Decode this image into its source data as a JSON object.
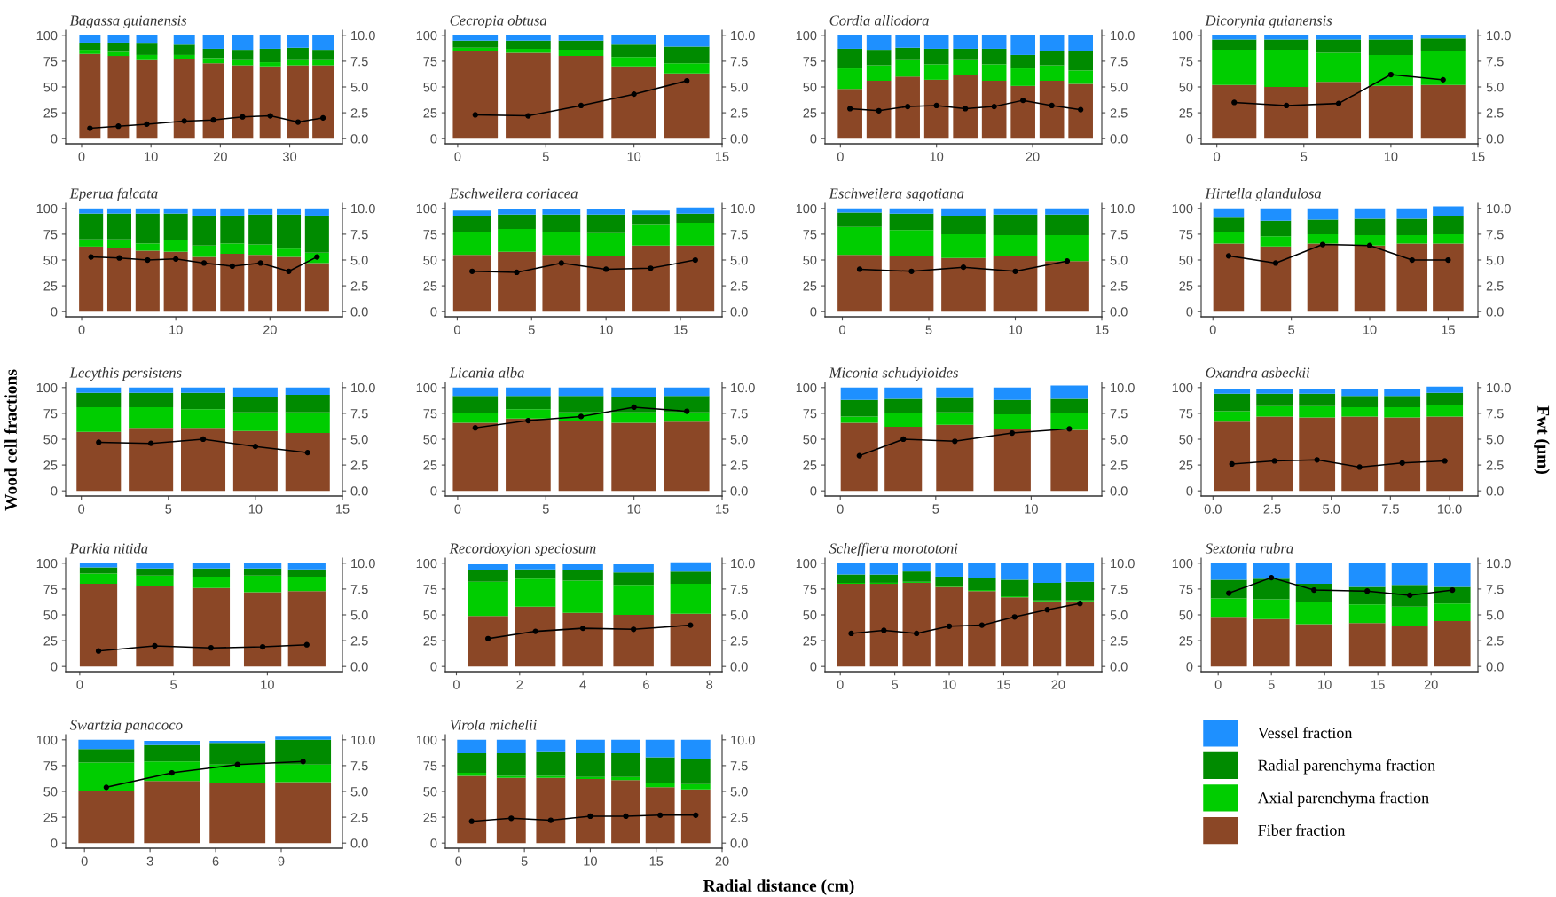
{
  "chart_data": [
    {
      "type": "bar",
      "stacked": true,
      "title": "Bagassa guianensis",
      "legend": "right",
      "x": [
        1.2,
        5.3,
        9.4,
        14.8,
        19,
        23.2,
        27.2,
        31.2,
        34.8
      ],
      "xlim": [
        -2.3,
        37.6
      ],
      "xticks": [
        0,
        10,
        20,
        30
      ],
      "ylim": [
        -5,
        105
      ],
      "yticks": [
        0,
        25,
        50,
        75,
        100
      ],
      "y2lim": [
        -0.5,
        10.5
      ],
      "y2ticks": [
        {
          "value": 0,
          "label": "0.0"
        },
        {
          "value": 2.5,
          "label": "2.5"
        },
        {
          "value": 5,
          "label": "5.0"
        },
        {
          "value": 7.5,
          "label": "7.5"
        },
        {
          "value": 10,
          "label": "10.0"
        }
      ],
      "marker": "circle",
      "line_style": "solid",
      "series": [
        {
          "name": "Fiber fraction",
          "color": "#8b4726",
          "values": [
            82,
            80,
            76,
            77,
            73,
            71,
            70,
            71,
            71
          ]
        },
        {
          "name": "Axial parenchyma fraction",
          "color": "#00cd00",
          "values": [
            4,
            4,
            5,
            4,
            5,
            5,
            4,
            5,
            5
          ]
        },
        {
          "name": "Radial parenchyma fraction",
          "color": "#008b00",
          "values": [
            7,
            9,
            11,
            10,
            9,
            10,
            13,
            12,
            10
          ]
        },
        {
          "name": "Vessel fraction",
          "color": "#1e90ff",
          "values": [
            7,
            7,
            8,
            9,
            13,
            14,
            13,
            12,
            14
          ]
        },
        {
          "type": "line",
          "axis": "y2",
          "color": "#000000",
          "values": [
            1.0,
            1.2,
            1.4,
            1.7,
            1.8,
            2.1,
            2.2,
            1.6,
            2.0
          ]
        }
      ]
    },
    {
      "type": "bar",
      "stacked": true,
      "title": "Cecropia obtusa",
      "x": [
        1,
        4,
        7,
        10,
        13
      ],
      "xlim": [
        -0.7,
        15
      ],
      "xticks": [
        0,
        5,
        10,
        15
      ],
      "ylim": [
        -5,
        105
      ],
      "yticks": [
        0,
        25,
        50,
        75,
        100
      ],
      "y2lim": [
        -0.5,
        10.5
      ],
      "y2ticks": [
        {
          "value": 0,
          "label": "0.0"
        },
        {
          "value": 2.5,
          "label": "2.5"
        },
        {
          "value": 5,
          "label": "5.0"
        },
        {
          "value": 7.5,
          "label": "7.5"
        },
        {
          "value": 10,
          "label": "10.0"
        }
      ],
      "marker": "circle",
      "line_style": "solid",
      "series": [
        {
          "color": "#8b4726",
          "values": [
            85,
            83,
            80,
            70,
            63
          ]
        },
        {
          "color": "#00cd00",
          "values": [
            3,
            4,
            6,
            9,
            10
          ]
        },
        {
          "color": "#008b00",
          "values": [
            7,
            8,
            9,
            12,
            16
          ]
        },
        {
          "color": "#1e90ff",
          "values": [
            5,
            5,
            5,
            9,
            11
          ]
        },
        {
          "type": "line",
          "axis": "y2",
          "color": "#000000",
          "values": [
            2.3,
            2.2,
            3.2,
            4.3,
            5.6
          ]
        }
      ]
    },
    {
      "type": "bar",
      "stacked": true,
      "title": "Cordia alliodora",
      "x": [
        1,
        4,
        7,
        10,
        13,
        16,
        19,
        22,
        25
      ],
      "xlim": [
        -1.6,
        27.2
      ],
      "xticks": [
        0,
        10,
        20
      ],
      "ylim": [
        -5,
        105
      ],
      "yticks": [
        0,
        25,
        50,
        75,
        100
      ],
      "y2lim": [
        -0.5,
        10.5
      ],
      "y2ticks": [
        {
          "value": 0,
          "label": "0.0"
        },
        {
          "value": 2.5,
          "label": "2.5"
        },
        {
          "value": 5,
          "label": "5.0"
        },
        {
          "value": 7.5,
          "label": "7.5"
        },
        {
          "value": 10,
          "label": "10.0"
        }
      ],
      "marker": "circle",
      "line_style": "solid",
      "series": [
        {
          "color": "#8b4726",
          "values": [
            48,
            56,
            60,
            57,
            62,
            56,
            51,
            56,
            53
          ]
        },
        {
          "color": "#00cd00",
          "values": [
            20,
            15,
            16,
            15,
            14,
            16,
            17,
            15,
            13
          ]
        },
        {
          "color": "#008b00",
          "values": [
            19,
            15,
            12,
            15,
            11,
            15,
            13,
            14,
            19
          ]
        },
        {
          "color": "#1e90ff",
          "values": [
            13,
            14,
            12,
            13,
            13,
            13,
            19,
            15,
            15
          ]
        },
        {
          "type": "line",
          "axis": "y2",
          "color": "#000000",
          "values": [
            2.9,
            2.7,
            3.1,
            3.2,
            2.9,
            3.1,
            3.7,
            3.2,
            2.8
          ]
        }
      ]
    },
    {
      "type": "bar",
      "stacked": true,
      "title": "Dicorynia guianensis",
      "x": [
        1,
        4,
        7,
        10,
        13
      ],
      "xlim": [
        -0.9,
        15
      ],
      "xticks": [
        0,
        5,
        10,
        15
      ],
      "ylim": [
        -5,
        105
      ],
      "yticks": [
        0,
        25,
        50,
        75,
        100
      ],
      "y2lim": [
        -0.5,
        10.5
      ],
      "y2ticks": [
        {
          "value": 0,
          "label": "0.0"
        },
        {
          "value": 2.5,
          "label": "2.5"
        },
        {
          "value": 5,
          "label": "5.0"
        },
        {
          "value": 7.5,
          "label": "7.5"
        },
        {
          "value": 10,
          "label": "10.0"
        }
      ],
      "marker": "circle",
      "line_style": "solid",
      "series": [
        {
          "color": "#8b4726",
          "values": [
            52,
            50,
            55,
            51,
            52
          ]
        },
        {
          "color": "#00cd00",
          "values": [
            34,
            36,
            28,
            30,
            33
          ]
        },
        {
          "color": "#008b00",
          "values": [
            10,
            10,
            13,
            15,
            12
          ]
        },
        {
          "color": "#1e90ff",
          "values": [
            4,
            4,
            4,
            4,
            3
          ]
        },
        {
          "type": "line",
          "axis": "y2",
          "color": "#000000",
          "values": [
            3.5,
            3.2,
            3.4,
            6.2,
            5.7
          ]
        }
      ]
    },
    {
      "type": "bar",
      "stacked": true,
      "title": "Eperua falcata",
      "x": [
        1,
        4,
        7,
        10,
        13,
        16,
        19,
        22,
        25
      ],
      "xlim": [
        -1.7,
        27.7
      ],
      "xticks": [
        0,
        10,
        20
      ],
      "ylim": [
        -5,
        105
      ],
      "yticks": [
        0,
        25,
        50,
        75,
        100
      ],
      "y2lim": [
        -0.5,
        10.5
      ],
      "y2ticks": [
        {
          "value": 0,
          "label": "0.0"
        },
        {
          "value": 2.5,
          "label": "2.5"
        },
        {
          "value": 5,
          "label": "5.0"
        },
        {
          "value": 7.5,
          "label": "7.5"
        },
        {
          "value": 10,
          "label": "10.0"
        }
      ],
      "marker": "circle",
      "line_style": "solid",
      "series": [
        {
          "color": "#8b4726",
          "values": [
            63,
            62,
            59,
            58,
            53,
            56,
            55,
            53,
            47
          ]
        },
        {
          "color": "#00cd00",
          "values": [
            7,
            8,
            7,
            11,
            11,
            10,
            10,
            8,
            10
          ]
        },
        {
          "color": "#008b00",
          "values": [
            25,
            25,
            29,
            26,
            29,
            27,
            29,
            33,
            36
          ]
        },
        {
          "color": "#1e90ff",
          "values": [
            5,
            5,
            5,
            5,
            7,
            7,
            6,
            6,
            7
          ]
        },
        {
          "type": "line",
          "axis": "y2",
          "color": "#000000",
          "values": [
            5.3,
            5.2,
            5.0,
            5.1,
            4.7,
            4.4,
            4.7,
            3.9,
            5.3
          ]
        }
      ]
    },
    {
      "type": "bar",
      "stacked": true,
      "title": "Eschweilera coriacea",
      "x": [
        1,
        4,
        7,
        10,
        13,
        16
      ],
      "xlim": [
        -0.8,
        17.8
      ],
      "xticks": [
        0,
        5,
        10,
        15
      ],
      "ylim": [
        -5,
        105
      ],
      "yticks": [
        0,
        25,
        50,
        75,
        100
      ],
      "y2lim": [
        -0.5,
        10.5
      ],
      "y2ticks": [
        {
          "value": 0,
          "label": "0.0"
        },
        {
          "value": 2.5,
          "label": "2.5"
        },
        {
          "value": 5,
          "label": "5.0"
        },
        {
          "value": 7.5,
          "label": "7.5"
        },
        {
          "value": 10,
          "label": "10.0"
        }
      ],
      "marker": "circle",
      "line_style": "solid",
      "series": [
        {
          "color": "#8b4726",
          "values": [
            55,
            58,
            55,
            54,
            64,
            64
          ]
        },
        {
          "color": "#00cd00",
          "values": [
            22,
            22,
            22,
            22,
            20,
            22
          ]
        },
        {
          "color": "#008b00",
          "values": [
            16,
            14,
            17,
            18,
            10,
            9
          ]
        },
        {
          "color": "#1e90ff",
          "values": [
            5,
            5,
            5,
            5,
            4,
            6
          ]
        },
        {
          "type": "line",
          "axis": "y2",
          "color": "#000000",
          "values": [
            3.9,
            3.8,
            4.7,
            4.1,
            4.2,
            5.0
          ]
        }
      ]
    },
    {
      "type": "bar",
      "stacked": true,
      "title": "Eschweilera sagotiana",
      "x": [
        1,
        4,
        7,
        10,
        13
      ],
      "xlim": [
        -1,
        15
      ],
      "xticks": [
        0,
        5,
        10,
        15
      ],
      "ylim": [
        -5,
        105
      ],
      "yticks": [
        0,
        25,
        50,
        75,
        100
      ],
      "y2lim": [
        -0.5,
        10.5
      ],
      "y2ticks": [
        {
          "value": 0,
          "label": "0.0"
        },
        {
          "value": 2.5,
          "label": "2.5"
        },
        {
          "value": 5,
          "label": "5.0"
        },
        {
          "value": 7.5,
          "label": "7.5"
        },
        {
          "value": 10,
          "label": "10.0"
        }
      ],
      "marker": "circle",
      "line_style": "solid",
      "series": [
        {
          "color": "#8b4726",
          "values": [
            55,
            54,
            52,
            54,
            49
          ]
        },
        {
          "color": "#00cd00",
          "values": [
            27,
            25,
            23,
            20,
            25
          ]
        },
        {
          "color": "#008b00",
          "values": [
            14,
            16,
            18,
            20,
            20
          ]
        },
        {
          "color": "#1e90ff",
          "values": [
            4,
            5,
            7,
            6,
            6
          ]
        },
        {
          "type": "line",
          "axis": "y2",
          "color": "#000000",
          "values": [
            4.1,
            3.9,
            4.3,
            3.9,
            4.9
          ]
        }
      ]
    },
    {
      "type": "bar",
      "stacked": true,
      "title": "Hirtella glandulosa",
      "x": [
        1,
        4,
        7,
        10,
        12.7,
        15
      ],
      "xlim": [
        -0.75,
        16.9
      ],
      "xticks": [
        0,
        5,
        10,
        15
      ],
      "ylim": [
        -5,
        105
      ],
      "yticks": [
        0,
        25,
        50,
        75,
        100
      ],
      "y2lim": [
        -0.5,
        10.5
      ],
      "y2ticks": [
        {
          "value": 0,
          "label": "0.0"
        },
        {
          "value": 2.5,
          "label": "2.5"
        },
        {
          "value": 5,
          "label": "5.0"
        },
        {
          "value": 7.5,
          "label": "7.5"
        },
        {
          "value": 10,
          "label": "10.0"
        }
      ],
      "marker": "circle",
      "line_style": "solid",
      "series": [
        {
          "color": "#8b4726",
          "values": [
            66,
            63,
            66,
            64,
            66,
            66
          ]
        },
        {
          "color": "#00cd00",
          "values": [
            11,
            10,
            9,
            10,
            8,
            9
          ]
        },
        {
          "color": "#008b00",
          "values": [
            14,
            15,
            14,
            16,
            16,
            18
          ]
        },
        {
          "color": "#1e90ff",
          "values": [
            9,
            12,
            11,
            10,
            10,
            9
          ]
        },
        {
          "type": "line",
          "axis": "y2",
          "color": "#000000",
          "values": [
            5.4,
            4.7,
            6.5,
            6.4,
            5.0,
            5.0
          ]
        }
      ]
    },
    {
      "type": "bar",
      "stacked": true,
      "title": "Lecythis persistens",
      "ylabel": "Wood cell fractions",
      "x": [
        1,
        4,
        7,
        10,
        13
      ],
      "xlim": [
        -0.9,
        15
      ],
      "xticks": [
        0,
        5,
        10,
        15
      ],
      "ylim": [
        -5,
        105
      ],
      "yticks": [
        0,
        25,
        50,
        75,
        100
      ],
      "y2lim": [
        -0.5,
        10.5
      ],
      "y2ticks": [
        {
          "value": 0,
          "label": "0.0"
        },
        {
          "value": 2.5,
          "label": "2.5"
        },
        {
          "value": 5,
          "label": "5.0"
        },
        {
          "value": 7.5,
          "label": "7.5"
        },
        {
          "value": 10,
          "label": "10.0"
        }
      ],
      "marker": "circle",
      "line_style": "solid",
      "series": [
        {
          "color": "#8b4726",
          "values": [
            57,
            61,
            61,
            58,
            56
          ]
        },
        {
          "color": "#00cd00",
          "values": [
            24,
            20,
            18,
            18,
            20
          ]
        },
        {
          "color": "#008b00",
          "values": [
            14,
            14,
            16,
            15,
            17
          ]
        },
        {
          "color": "#1e90ff",
          "values": [
            5,
            5,
            5,
            9,
            7
          ]
        },
        {
          "type": "line",
          "axis": "y2",
          "color": "#000000",
          "values": [
            4.7,
            4.6,
            5.0,
            4.3,
            3.7
          ]
        }
      ]
    },
    {
      "type": "bar",
      "stacked": true,
      "title": "Licania alba",
      "x": [
        1,
        4,
        7,
        10,
        13
      ],
      "xlim": [
        -0.7,
        15
      ],
      "xticks": [
        0,
        5,
        10,
        15
      ],
      "ylim": [
        -5,
        105
      ],
      "yticks": [
        0,
        25,
        50,
        75,
        100
      ],
      "y2lim": [
        -0.5,
        10.5
      ],
      "y2ticks": [
        {
          "value": 0,
          "label": "0.0"
        },
        {
          "value": 2.5,
          "label": "2.5"
        },
        {
          "value": 5,
          "label": "5.0"
        },
        {
          "value": 7.5,
          "label": "7.5"
        },
        {
          "value": 10,
          "label": "10.0"
        }
      ],
      "marker": "circle",
      "line_style": "solid",
      "series": [
        {
          "color": "#8b4726",
          "values": [
            66,
            70,
            68,
            66,
            67
          ]
        },
        {
          "color": "#00cd00",
          "values": [
            9,
            9,
            8,
            10,
            9
          ]
        },
        {
          "color": "#008b00",
          "values": [
            17,
            13,
            16,
            15,
            16
          ]
        },
        {
          "color": "#1e90ff",
          "values": [
            8,
            8,
            8,
            9,
            8
          ]
        },
        {
          "type": "line",
          "axis": "y2",
          "color": "#000000",
          "values": [
            6.1,
            6.8,
            7.2,
            8.1,
            7.7
          ]
        }
      ]
    },
    {
      "type": "bar",
      "stacked": true,
      "title": "Miconia schudyioides",
      "x": [
        1,
        3.3,
        6,
        9,
        12
      ],
      "xlim": [
        -0.8,
        13.7
      ],
      "xticks": [
        0,
        5,
        10
      ],
      "ylim": [
        -5,
        105
      ],
      "yticks": [
        0,
        25,
        50,
        75,
        100
      ],
      "y2lim": [
        -0.5,
        10.5
      ],
      "y2ticks": [
        {
          "value": 0,
          "label": "0.0"
        },
        {
          "value": 2.5,
          "label": "2.5"
        },
        {
          "value": 5,
          "label": "5.0"
        },
        {
          "value": 7.5,
          "label": "7.5"
        },
        {
          "value": 10,
          "label": "10.0"
        }
      ],
      "marker": "circle",
      "line_style": "solid",
      "series": [
        {
          "color": "#8b4726",
          "values": [
            66,
            62,
            64,
            60,
            59
          ]
        },
        {
          "color": "#00cd00",
          "values": [
            6,
            13,
            12,
            14,
            16
          ]
        },
        {
          "color": "#008b00",
          "values": [
            16,
            14,
            14,
            14,
            14
          ]
        },
        {
          "color": "#1e90ff",
          "values": [
            12,
            11,
            10,
            12,
            13
          ]
        },
        {
          "type": "line",
          "axis": "y2",
          "color": "#000000",
          "values": [
            3.4,
            5.0,
            4.8,
            5.6,
            6.0
          ]
        }
      ]
    },
    {
      "type": "bar",
      "stacked": true,
      "title": "Oxandra asbeckii",
      "y2label": "Fwt (µm)",
      "x": [
        0.8,
        2.6,
        4.4,
        6.2,
        8.0,
        9.8
      ],
      "xlim": [
        -0.5,
        11.2
      ],
      "xticks": [
        {
          "value": 0,
          "label": "0.0"
        },
        {
          "value": 2.5,
          "label": "2.5"
        },
        {
          "value": 5,
          "label": "5.0"
        },
        {
          "value": 7.5,
          "label": "7.5"
        },
        {
          "value": 10,
          "label": "10.0"
        }
      ],
      "ylim": [
        -5,
        105
      ],
      "yticks": [
        0,
        25,
        50,
        75,
        100
      ],
      "y2lim": [
        -0.5,
        10.5
      ],
      "y2ticks": [
        {
          "value": 0,
          "label": "0.0"
        },
        {
          "value": 2.5,
          "label": "2.5"
        },
        {
          "value": 5,
          "label": "5.0"
        },
        {
          "value": 7.5,
          "label": "7.5"
        },
        {
          "value": 10,
          "label": "10.0"
        }
      ],
      "marker": "circle",
      "line_style": "solid",
      "series": [
        {
          "color": "#8b4726",
          "values": [
            67,
            72,
            71,
            72,
            71,
            72
          ]
        },
        {
          "color": "#00cd00",
          "values": [
            10,
            10,
            11,
            9,
            10,
            11
          ]
        },
        {
          "color": "#008b00",
          "values": [
            17,
            12,
            12,
            11,
            11,
            12
          ]
        },
        {
          "color": "#1e90ff",
          "values": [
            5,
            5,
            5,
            7,
            7,
            6
          ]
        },
        {
          "type": "line",
          "axis": "y2",
          "color": "#000000",
          "values": [
            2.6,
            2.9,
            3.0,
            2.3,
            2.7,
            2.9
          ]
        }
      ]
    },
    {
      "type": "bar",
      "stacked": true,
      "title": "Parkia nitida",
      "x": [
        1,
        4,
        7,
        9.75,
        12.1
      ],
      "xlim": [
        -0.75,
        14
      ],
      "xticks": [
        0,
        5,
        10
      ],
      "ylim": [
        -5,
        105
      ],
      "yticks": [
        0,
        25,
        50,
        75,
        100
      ],
      "y2lim": [
        -0.5,
        10.5
      ],
      "y2ticks": [
        {
          "value": 0,
          "label": "0.0"
        },
        {
          "value": 2.5,
          "label": "2.5"
        },
        {
          "value": 5,
          "label": "5.0"
        },
        {
          "value": 7.5,
          "label": "7.5"
        },
        {
          "value": 10,
          "label": "10.0"
        }
      ],
      "marker": "circle",
      "line_style": "solid",
      "series": [
        {
          "color": "#8b4726",
          "values": [
            80,
            78,
            76,
            72,
            73
          ]
        },
        {
          "color": "#00cd00",
          "values": [
            10,
            10,
            11,
            16,
            14
          ]
        },
        {
          "color": "#008b00",
          "values": [
            6,
            7,
            8,
            7,
            7
          ]
        },
        {
          "color": "#1e90ff",
          "values": [
            4,
            5,
            5,
            5,
            6
          ]
        },
        {
          "type": "line",
          "axis": "y2",
          "color": "#000000",
          "values": [
            1.5,
            2.0,
            1.8,
            1.9,
            2.1
          ]
        }
      ]
    },
    {
      "type": "bar",
      "stacked": true,
      "title": "Recordoxylon speciosum",
      "x": [
        1,
        2.5,
        4,
        5.6,
        7.4
      ],
      "xlim": [
        -0.35,
        8.4
      ],
      "xticks": [
        0,
        2,
        4,
        6,
        8
      ],
      "ylim": [
        -5,
        105
      ],
      "yticks": [
        0,
        25,
        50,
        75,
        100
      ],
      "y2lim": [
        -0.5,
        10.5
      ],
      "y2ticks": [
        {
          "value": 0,
          "label": "0.0"
        },
        {
          "value": 2.5,
          "label": "2.5"
        },
        {
          "value": 5,
          "label": "5.0"
        },
        {
          "value": 7.5,
          "label": "7.5"
        },
        {
          "value": 10,
          "label": "10.0"
        }
      ],
      "marker": "circle",
      "line_style": "solid",
      "series": [
        {
          "color": "#8b4726",
          "values": [
            49,
            58,
            52,
            50,
            51
          ]
        },
        {
          "color": "#00cd00",
          "values": [
            33,
            27,
            31,
            29,
            29
          ]
        },
        {
          "color": "#008b00",
          "values": [
            11,
            9,
            10,
            12,
            12
          ]
        },
        {
          "color": "#1e90ff",
          "values": [
            6,
            5,
            6,
            8,
            9
          ]
        },
        {
          "type": "line",
          "axis": "y2",
          "color": "#000000",
          "values": [
            2.7,
            3.4,
            3.7,
            3.6,
            4.0
          ]
        }
      ]
    },
    {
      "type": "bar",
      "stacked": true,
      "title": "Schefflera morototoni",
      "x": [
        1,
        4,
        7,
        10,
        13,
        16,
        19,
        22
      ],
      "xlim": [
        -1.4,
        24
      ],
      "xticks": [
        0,
        5,
        10,
        15,
        20
      ],
      "ylim": [
        -5,
        105
      ],
      "yticks": [
        0,
        25,
        50,
        75,
        100
      ],
      "y2lim": [
        -0.5,
        10.5
      ],
      "y2ticks": [
        {
          "value": 0,
          "label": "0.0"
        },
        {
          "value": 2.5,
          "label": "2.5"
        },
        {
          "value": 5,
          "label": "5.0"
        },
        {
          "value": 7.5,
          "label": "7.5"
        },
        {
          "value": 10,
          "label": "10.0"
        }
      ],
      "marker": "circle",
      "line_style": "solid",
      "series": [
        {
          "color": "#8b4726",
          "values": [
            80,
            80,
            81,
            77,
            73,
            67,
            63,
            63
          ]
        },
        {
          "color": "#00cd00",
          "values": [
            1,
            1,
            1,
            1,
            1,
            1,
            1,
            1
          ]
        },
        {
          "color": "#008b00",
          "values": [
            8,
            8,
            10,
            9,
            12,
            16,
            17,
            18
          ]
        },
        {
          "color": "#1e90ff",
          "values": [
            11,
            11,
            8,
            13,
            14,
            16,
            19,
            18
          ]
        },
        {
          "type": "line",
          "axis": "y2",
          "color": "#000000",
          "values": [
            3.2,
            3.5,
            3.2,
            3.9,
            4.0,
            4.8,
            5.5,
            6.1
          ]
        }
      ]
    },
    {
      "type": "bar",
      "stacked": true,
      "title": "Sextonia rubra",
      "x": [
        1,
        5,
        9,
        14,
        18,
        22
      ],
      "xlim": [
        -1.6,
        24.4
      ],
      "xticks": [
        0,
        5,
        10,
        15,
        20
      ],
      "ylim": [
        -5,
        105
      ],
      "yticks": [
        0,
        25,
        50,
        75,
        100
      ],
      "y2lim": [
        -0.5,
        10.5
      ],
      "y2ticks": [
        {
          "value": 0,
          "label": "0.0"
        },
        {
          "value": 2.5,
          "label": "2.5"
        },
        {
          "value": 5,
          "label": "5.0"
        },
        {
          "value": 7.5,
          "label": "7.5"
        },
        {
          "value": 10,
          "label": "10.0"
        }
      ],
      "marker": "circle",
      "line_style": "solid",
      "series": [
        {
          "color": "#8b4726",
          "values": [
            48,
            46,
            41,
            42,
            39,
            44
          ]
        },
        {
          "color": "#00cd00",
          "values": [
            18,
            19,
            21,
            18,
            19,
            17
          ]
        },
        {
          "color": "#008b00",
          "values": [
            18,
            20,
            18,
            17,
            21,
            16
          ]
        },
        {
          "color": "#1e90ff",
          "values": [
            16,
            15,
            20,
            23,
            21,
            23
          ]
        },
        {
          "type": "line",
          "axis": "y2",
          "color": "#000000",
          "values": [
            7.1,
            8.6,
            7.4,
            7.3,
            6.9,
            7.4
          ]
        }
      ]
    },
    {
      "type": "bar",
      "stacked": true,
      "title": "Swartzia panacoco",
      "x": [
        1,
        4,
        7,
        10
      ],
      "xlim": [
        -0.86,
        11.8
      ],
      "xticks": [
        0,
        3,
        6,
        9
      ],
      "ylim": [
        -5,
        105
      ],
      "yticks": [
        0,
        25,
        50,
        75,
        100
      ],
      "y2lim": [
        -0.5,
        10.5
      ],
      "y2ticks": [
        {
          "value": 0,
          "label": "0.0"
        },
        {
          "value": 2.5,
          "label": "2.5"
        },
        {
          "value": 5,
          "label": "5.0"
        },
        {
          "value": 7.5,
          "label": "7.5"
        },
        {
          "value": 10,
          "label": "10.0"
        }
      ],
      "marker": "circle",
      "line_style": "solid",
      "series": [
        {
          "color": "#8b4726",
          "values": [
            50,
            60,
            58,
            59
          ]
        },
        {
          "color": "#00cd00",
          "values": [
            28,
            19,
            18,
            17
          ]
        },
        {
          "color": "#008b00",
          "values": [
            13,
            16,
            21,
            24
          ]
        },
        {
          "color": "#1e90ff",
          "values": [
            9,
            4,
            2,
            3
          ]
        },
        {
          "type": "line",
          "axis": "y2",
          "color": "#000000",
          "values": [
            5.4,
            6.8,
            7.6,
            7.9
          ]
        }
      ]
    },
    {
      "type": "bar",
      "stacked": true,
      "title": "Virola michelii",
      "xlabel": "Radial distance (cm)",
      "x": [
        1,
        4,
        7,
        10,
        12.7,
        15.3,
        18
      ],
      "xlim": [
        -1,
        20
      ],
      "xticks": [
        0,
        5,
        10,
        15,
        20
      ],
      "ylim": [
        -5,
        105
      ],
      "yticks": [
        0,
        25,
        50,
        75,
        100
      ],
      "y2lim": [
        -0.5,
        10.5
      ],
      "y2ticks": [
        {
          "value": 0,
          "label": "0.0"
        },
        {
          "value": 2.5,
          "label": "2.5"
        },
        {
          "value": 5,
          "label": "5.0"
        },
        {
          "value": 7.5,
          "label": "7.5"
        },
        {
          "value": 10,
          "label": "10.0"
        }
      ],
      "marker": "circle",
      "line_style": "solid",
      "series": [
        {
          "color": "#8b4726",
          "values": [
            65,
            63,
            63,
            62,
            61,
            54,
            52
          ]
        },
        {
          "color": "#00cd00",
          "values": [
            3,
            2,
            2,
            2,
            3,
            4,
            5
          ]
        },
        {
          "color": "#008b00",
          "values": [
            19,
            22,
            23,
            23,
            23,
            25,
            24
          ]
        },
        {
          "color": "#1e90ff",
          "values": [
            13,
            13,
            12,
            13,
            13,
            17,
            19
          ]
        },
        {
          "type": "line",
          "axis": "y2",
          "color": "#000000",
          "values": [
            2.1,
            2.4,
            2.2,
            2.6,
            2.6,
            2.7,
            2.7
          ]
        }
      ]
    }
  ]
}
